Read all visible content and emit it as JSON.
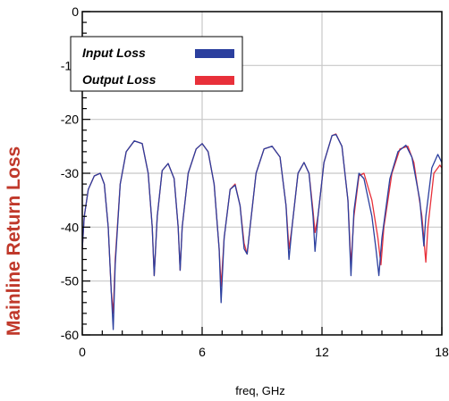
{
  "chart_data": {
    "type": "line",
    "title": "",
    "xlabel": "freq, GHz",
    "ylabel": "Mainline Return Loss",
    "xlim": [
      0,
      18
    ],
    "ylim": [
      -60,
      0
    ],
    "x_ticks": [
      0,
      6,
      12,
      18
    ],
    "y_ticks": [
      0,
      -10,
      -20,
      -30,
      -40,
      -50,
      -60
    ],
    "grid": true,
    "legend_position": "top-left",
    "series": [
      {
        "name": "Input Loss",
        "color": "#2b3f9e",
        "points": [
          [
            0,
            -44
          ],
          [
            0.1,
            -38
          ],
          [
            0.3,
            -33
          ],
          [
            0.6,
            -30.5
          ],
          [
            0.9,
            -30
          ],
          [
            1.1,
            -32
          ],
          [
            1.3,
            -40
          ],
          [
            1.45,
            -52
          ],
          [
            1.55,
            -59
          ],
          [
            1.65,
            -47
          ],
          [
            1.9,
            -32
          ],
          [
            2.2,
            -26
          ],
          [
            2.6,
            -24
          ],
          [
            3.0,
            -24.5
          ],
          [
            3.3,
            -30
          ],
          [
            3.5,
            -40
          ],
          [
            3.6,
            -49
          ],
          [
            3.75,
            -38
          ],
          [
            4.0,
            -29.5
          ],
          [
            4.3,
            -28.2
          ],
          [
            4.6,
            -31
          ],
          [
            4.8,
            -40
          ],
          [
            4.9,
            -48
          ],
          [
            5.0,
            -40
          ],
          [
            5.3,
            -30
          ],
          [
            5.7,
            -25.5
          ],
          [
            6.0,
            -24.5
          ],
          [
            6.3,
            -26
          ],
          [
            6.6,
            -32
          ],
          [
            6.85,
            -44
          ],
          [
            6.95,
            -54
          ],
          [
            7.1,
            -42
          ],
          [
            7.4,
            -33
          ],
          [
            7.65,
            -32.2
          ],
          [
            7.9,
            -36
          ],
          [
            8.1,
            -44
          ],
          [
            8.25,
            -45
          ],
          [
            8.4,
            -40
          ],
          [
            8.7,
            -30
          ],
          [
            9.1,
            -25.5
          ],
          [
            9.5,
            -25
          ],
          [
            9.9,
            -27
          ],
          [
            10.2,
            -36
          ],
          [
            10.35,
            -46
          ],
          [
            10.5,
            -40
          ],
          [
            10.8,
            -30
          ],
          [
            11.1,
            -28
          ],
          [
            11.35,
            -30
          ],
          [
            11.55,
            -38
          ],
          [
            11.65,
            -44.5
          ],
          [
            11.8,
            -38
          ],
          [
            12.1,
            -28
          ],
          [
            12.5,
            -23
          ],
          [
            12.7,
            -22.8
          ],
          [
            13.0,
            -25
          ],
          [
            13.3,
            -35
          ],
          [
            13.45,
            -49
          ],
          [
            13.6,
            -37
          ],
          [
            13.85,
            -30
          ],
          [
            14.1,
            -31
          ],
          [
            14.5,
            -38
          ],
          [
            14.7,
            -44
          ],
          [
            14.85,
            -49
          ],
          [
            15.0,
            -42
          ],
          [
            15.4,
            -31
          ],
          [
            15.8,
            -26
          ],
          [
            16.2,
            -24.8
          ],
          [
            16.5,
            -27
          ],
          [
            16.9,
            -35
          ],
          [
            17.1,
            -43.5
          ],
          [
            17.2,
            -38
          ],
          [
            17.5,
            -29
          ],
          [
            17.8,
            -26.5
          ],
          [
            18.0,
            -28
          ]
        ]
      },
      {
        "name": "Output Loss",
        "color": "#e8303a",
        "points": [
          [
            0,
            -44
          ],
          [
            0.1,
            -38
          ],
          [
            0.3,
            -33
          ],
          [
            0.6,
            -30.5
          ],
          [
            0.9,
            -30
          ],
          [
            1.1,
            -32
          ],
          [
            1.3,
            -40
          ],
          [
            1.45,
            -52
          ],
          [
            1.55,
            -56
          ],
          [
            1.65,
            -46
          ],
          [
            1.9,
            -32
          ],
          [
            2.2,
            -26
          ],
          [
            2.6,
            -24
          ],
          [
            3.0,
            -24.5
          ],
          [
            3.3,
            -30
          ],
          [
            3.5,
            -40
          ],
          [
            3.6,
            -49
          ],
          [
            3.75,
            -38
          ],
          [
            4.0,
            -29.5
          ],
          [
            4.3,
            -28.2
          ],
          [
            4.6,
            -31
          ],
          [
            4.8,
            -40
          ],
          [
            4.9,
            -48
          ],
          [
            5.0,
            -40
          ],
          [
            5.3,
            -30
          ],
          [
            5.7,
            -25.5
          ],
          [
            6.0,
            -24.5
          ],
          [
            6.3,
            -26
          ],
          [
            6.6,
            -32
          ],
          [
            6.85,
            -44
          ],
          [
            6.95,
            -51
          ],
          [
            7.1,
            -42
          ],
          [
            7.4,
            -33
          ],
          [
            7.65,
            -32
          ],
          [
            7.9,
            -36
          ],
          [
            8.1,
            -43
          ],
          [
            8.25,
            -45
          ],
          [
            8.4,
            -40
          ],
          [
            8.7,
            -30
          ],
          [
            9.1,
            -25.5
          ],
          [
            9.5,
            -25
          ],
          [
            9.9,
            -27
          ],
          [
            10.2,
            -36
          ],
          [
            10.35,
            -44
          ],
          [
            10.5,
            -40
          ],
          [
            10.8,
            -30
          ],
          [
            11.1,
            -28
          ],
          [
            11.35,
            -30
          ],
          [
            11.55,
            -37
          ],
          [
            11.65,
            -41
          ],
          [
            11.8,
            -38
          ],
          [
            12.1,
            -28
          ],
          [
            12.5,
            -23
          ],
          [
            12.7,
            -22.7
          ],
          [
            13.0,
            -25
          ],
          [
            13.3,
            -35
          ],
          [
            13.45,
            -47
          ],
          [
            13.6,
            -38
          ],
          [
            13.85,
            -30.5
          ],
          [
            14.1,
            -30
          ],
          [
            14.5,
            -35
          ],
          [
            14.8,
            -42
          ],
          [
            14.95,
            -47
          ],
          [
            15.1,
            -40
          ],
          [
            15.5,
            -30
          ],
          [
            15.9,
            -25.5
          ],
          [
            16.3,
            -25
          ],
          [
            16.6,
            -28
          ],
          [
            17.0,
            -38
          ],
          [
            17.2,
            -46.5
          ],
          [
            17.3,
            -40
          ],
          [
            17.6,
            -30
          ],
          [
            17.9,
            -28.5
          ],
          [
            18.0,
            -29
          ]
        ]
      }
    ]
  }
}
